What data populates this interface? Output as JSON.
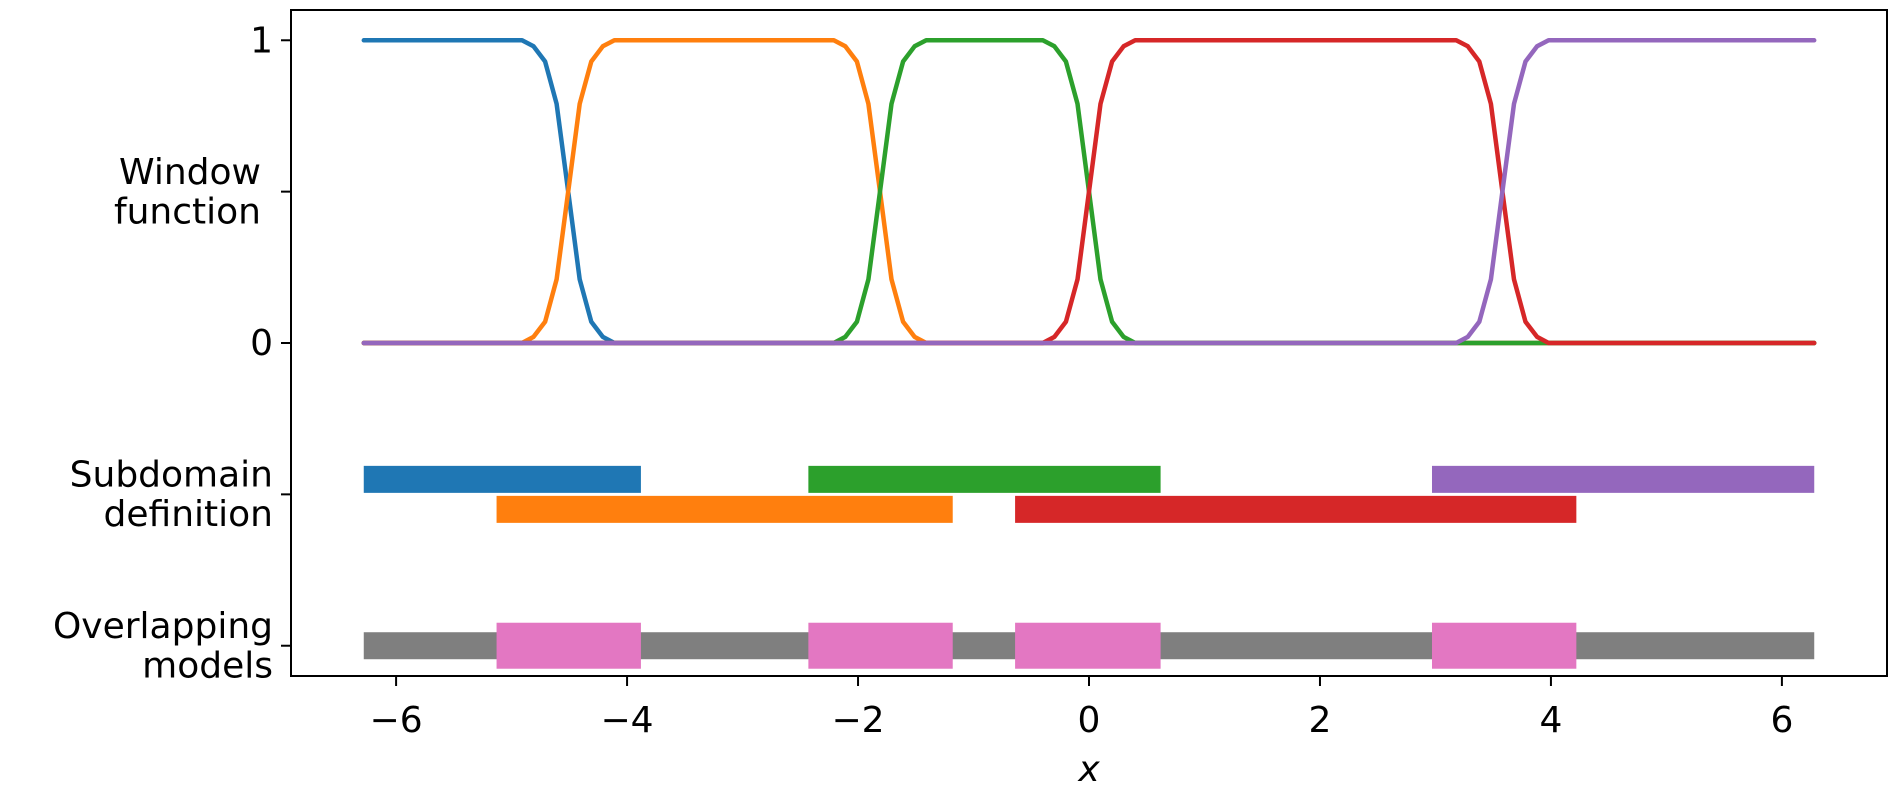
{
  "chart_data": {
    "type": "line",
    "x_label": "x",
    "xlim": [
      -6.91,
      6.91
    ],
    "ylim": [
      -1.1,
      1.1
    ],
    "xticks": [
      {
        "value": -6,
        "label": "−6"
      },
      {
        "value": -4,
        "label": "−4"
      },
      {
        "value": -2,
        "label": "−2"
      },
      0,
      2,
      4,
      6
    ],
    "yticks": [
      1,
      {
        "value": 0.5
      },
      0,
      {
        "value": -0.5,
        "label": "Subdomain\ndefinition"
      },
      {
        "value": -1,
        "label": "Overlapping\nmodels"
      }
    ],
    "y_labels": [
      {
        "value": 0.5,
        "label": "Window\nfunction"
      }
    ],
    "series": [
      {
        "color": "#1f77b4",
        "x": [
          -6.28,
          -4.91,
          -4.81,
          -4.71,
          -4.61,
          -4.51,
          -4.41,
          -4.31,
          -4.21,
          -4.11,
          6.28
        ],
        "values": [
          1,
          1,
          0.98,
          0.93,
          0.79,
          0.5,
          0.21,
          0.07,
          0.02,
          0,
          0
        ]
      },
      {
        "color": "#ff7f0e",
        "x": [
          -6.28,
          -4.91,
          -4.81,
          -4.71,
          -4.61,
          -4.51,
          -4.41,
          -4.31,
          -4.21,
          -4.11,
          -2.21,
          -2.11,
          -2.01,
          -1.91,
          -1.81,
          -1.71,
          -1.61,
          -1.51,
          -1.41,
          6.28
        ],
        "values": [
          0,
          0,
          0.02,
          0.07,
          0.21,
          0.5,
          0.79,
          0.93,
          0.98,
          1,
          1,
          0.98,
          0.93,
          0.79,
          0.5,
          0.21,
          0.07,
          0.02,
          0,
          0
        ]
      },
      {
        "color": "#2ca02c",
        "x": [
          -6.28,
          -2.21,
          -2.11,
          -2.01,
          -1.91,
          -1.81,
          -1.71,
          -1.61,
          -1.51,
          -1.41,
          -0.4,
          -0.3,
          -0.2,
          -0.1,
          0,
          0.1,
          0.2,
          0.3,
          0.4,
          6.28
        ],
        "values": [
          0,
          0,
          0.02,
          0.07,
          0.21,
          0.5,
          0.79,
          0.93,
          0.98,
          1,
          1,
          0.98,
          0.93,
          0.79,
          0.5,
          0.21,
          0.07,
          0.02,
          0,
          0
        ]
      },
      {
        "color": "#d62728",
        "x": [
          -6.28,
          -0.4,
          -0.3,
          -0.2,
          -0.1,
          0,
          0.1,
          0.2,
          0.3,
          0.4,
          3.18,
          3.28,
          3.38,
          3.48,
          3.58,
          3.68,
          3.78,
          3.88,
          3.98,
          6.28
        ],
        "values": [
          0,
          0,
          0.02,
          0.07,
          0.21,
          0.5,
          0.79,
          0.93,
          0.98,
          1,
          1,
          0.98,
          0.93,
          0.79,
          0.5,
          0.21,
          0.07,
          0.02,
          0,
          0
        ]
      },
      {
        "color": "#9467bd",
        "x": [
          -6.28,
          3.18,
          3.28,
          3.38,
          3.48,
          3.58,
          3.68,
          3.78,
          3.88,
          3.98,
          6.28
        ],
        "values": [
          0,
          0,
          0.02,
          0.07,
          0.21,
          0.5,
          0.79,
          0.93,
          0.98,
          1,
          1
        ]
      }
    ],
    "subdomains": [
      {
        "color": "#1f77b4",
        "range": [
          -6.28,
          -3.88
        ]
      },
      {
        "color": "#ff7f0e",
        "range": [
          -5.13,
          -1.18
        ]
      },
      {
        "color": "#2ca02c",
        "range": [
          -2.43,
          0.62
        ]
      },
      {
        "color": "#d62728",
        "range": [
          -0.64,
          4.22
        ]
      },
      {
        "color": "#9467bd",
        "range": [
          2.97,
          6.28
        ]
      }
    ],
    "overlapping": {
      "base": {
        "color": "#7f7f7f",
        "range": [
          -6.28,
          6.28
        ]
      },
      "color": "#e377c2",
      "ranges": [
        [
          -5.13,
          -3.88
        ],
        [
          -2.43,
          -1.18
        ],
        [
          -0.64,
          0.62
        ],
        [
          2.97,
          4.22
        ]
      ]
    }
  }
}
